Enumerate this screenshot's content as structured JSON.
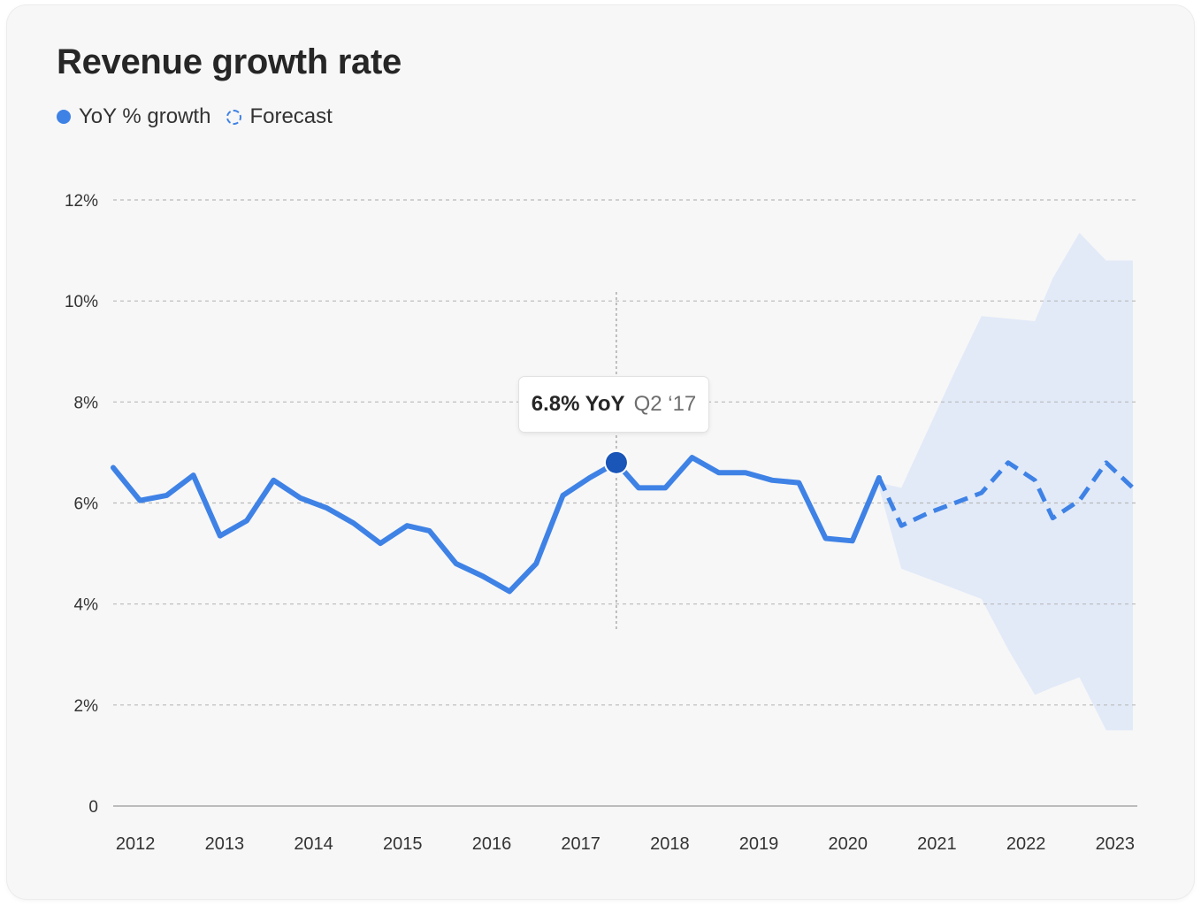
{
  "colors": {
    "line": "#3f82e6",
    "forecast_band": "#e2eaf8",
    "highlight_point": "#1a55b8",
    "grid": "#b9b9b9",
    "axis": "#a8a8a8",
    "text": "#262626"
  },
  "chart_data": {
    "type": "line",
    "title": "Revenue growth rate",
    "legend": [
      {
        "label": "YoY % growth",
        "style": "solid",
        "icon": "solid-dot-icon"
      },
      {
        "label": "Forecast",
        "style": "dashed",
        "icon": "dashed-circle-icon"
      }
    ],
    "legend_position": "top-left",
    "ylim": [
      0,
      12
    ],
    "yticks": [
      {
        "value": 0,
        "label": "0"
      },
      {
        "value": 2,
        "label": "2%"
      },
      {
        "value": 4,
        "label": "4%"
      },
      {
        "value": 6,
        "label": "6%"
      },
      {
        "value": 8,
        "label": "8%"
      },
      {
        "value": 10,
        "label": "10%"
      },
      {
        "value": 12,
        "label": "12%"
      }
    ],
    "xlim": [
      2011.75,
      2023.25
    ],
    "xticks": [
      {
        "value": 2012,
        "label": "2012"
      },
      {
        "value": 2013,
        "label": "2013"
      },
      {
        "value": 2014,
        "label": "2014"
      },
      {
        "value": 2015,
        "label": "2015"
      },
      {
        "value": 2016,
        "label": "2016"
      },
      {
        "value": 2017,
        "label": "2017"
      },
      {
        "value": 2018,
        "label": "2018"
      },
      {
        "value": 2019,
        "label": "2019"
      },
      {
        "value": 2020,
        "label": "2020"
      },
      {
        "value": 2021,
        "label": "2021"
      },
      {
        "value": 2022,
        "label": "2022"
      },
      {
        "value": 2023,
        "label": "2023"
      }
    ],
    "grid": true,
    "series": [
      {
        "name": "YoY % growth",
        "style": "solid",
        "x": [
          2011.75,
          2012.05,
          2012.35,
          2012.65,
          2012.95,
          2013.25,
          2013.55,
          2013.85,
          2014.15,
          2014.45,
          2014.75,
          2015.05,
          2015.3,
          2015.6,
          2015.9,
          2016.2,
          2016.5,
          2016.8,
          2017.1,
          2017.4,
          2017.65,
          2017.95,
          2018.25,
          2018.55,
          2018.85,
          2019.15,
          2019.45,
          2019.75,
          2020.05,
          2020.35
        ],
        "y": [
          6.7,
          6.05,
          6.15,
          6.55,
          5.35,
          5.65,
          6.45,
          6.1,
          5.9,
          5.6,
          5.2,
          5.55,
          5.45,
          4.8,
          4.55,
          4.25,
          4.8,
          6.15,
          6.5,
          6.8,
          6.3,
          6.3,
          6.9,
          6.6,
          6.6,
          6.45,
          6.4,
          5.3,
          5.25,
          6.5
        ]
      },
      {
        "name": "Forecast",
        "style": "dashed",
        "x": [
          2020.35,
          2020.6,
          2020.9,
          2021.2,
          2021.5,
          2021.8,
          2022.1,
          2022.3,
          2022.6,
          2022.9,
          2023.2
        ],
        "y": [
          6.5,
          5.55,
          5.8,
          6.0,
          6.2,
          6.8,
          6.45,
          5.7,
          6.05,
          6.8,
          6.3
        ],
        "upper": [
          6.4,
          6.3,
          7.45,
          8.6,
          9.7,
          9.65,
          9.6,
          10.45,
          11.35,
          10.8,
          10.8
        ],
        "lower": [
          6.3,
          4.7,
          4.5,
          4.3,
          4.1,
          3.1,
          2.2,
          2.35,
          2.55,
          1.5,
          1.5
        ]
      }
    ],
    "tooltip": {
      "x": 2017.4,
      "y": 6.8,
      "value": "6.8% YoY",
      "period": "Q2 ‘17"
    }
  }
}
